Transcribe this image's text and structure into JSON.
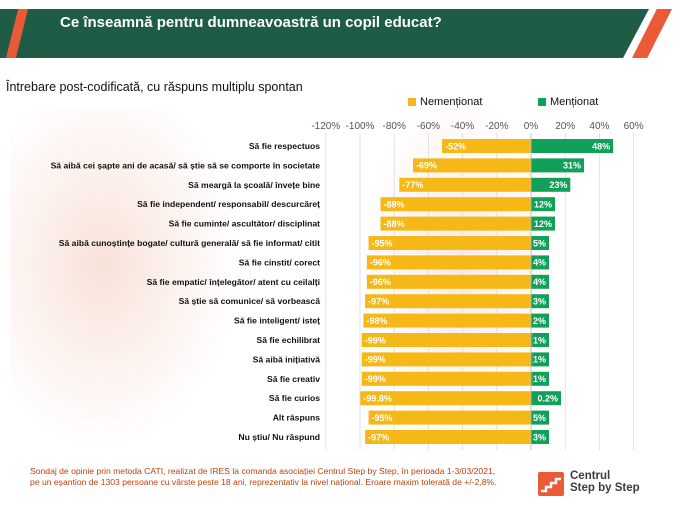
{
  "header": {
    "title": "Ce înseamnă pentru dumneavoastră un copil educat?"
  },
  "colors": {
    "header_bg": "#1e5c46",
    "accent": "#ea5a37",
    "negative": "#f6b817",
    "positive": "#11a05a"
  },
  "chart_data": {
    "type": "bar",
    "orientation": "horizontal",
    "title": "Întrebare post-codificată, cu răspuns multiplu spontan",
    "xlim": [
      -120,
      60
    ],
    "xticks": [
      "-120%",
      "-100%",
      "-80%",
      "-60%",
      "-40%",
      "-20%",
      "0%",
      "20%",
      "40%",
      "60%"
    ],
    "legend_position": "top-right",
    "grid": true,
    "categories": [
      "Să fie respectuos",
      "Să aibă cei șapte ani de acasă/ să știe să se comporte în societate",
      "Să meargă la școală/ învețe bine",
      "Să fie independent/ responsabil/ descurcăreț",
      "Să fie cuminte/ ascultător/ disciplinat",
      "Să aibă cunoștințe bogate/ cultură generală/ să fie informat/ citit",
      "Să fie cinstit/ corect",
      "Să fie empatic/ înțelegător/ atent cu ceilalți",
      "Să știe să comunice/ să vorbească",
      "Să fie inteligent/ isteț",
      "Să fie echilibrat",
      "Să aibă inițiativă",
      "Să fie creativ",
      "Să fie curios",
      "Alt răspuns",
      "Nu știu/ Nu răspund"
    ],
    "series": [
      {
        "name": "Nemenționat",
        "values": [
          -52,
          -69,
          -77,
          -88,
          -88,
          -95,
          -96,
          -96,
          -97,
          -98,
          -99,
          -99,
          -99,
          -99.8,
          -95,
          -97
        ],
        "labels": [
          "-52%",
          "-69%",
          "-77%",
          "-88%",
          "-88%",
          "-95%",
          "-96%",
          "-96%",
          "-97%",
          "-98%",
          "-99%",
          "-99%",
          "-99%",
          "-99.8%",
          "-95%",
          "-97%"
        ]
      },
      {
        "name": "Menționat",
        "values": [
          48,
          31,
          23,
          12,
          12,
          5,
          4,
          4,
          3,
          2,
          1,
          1,
          1,
          0.2,
          5,
          3
        ],
        "labels": [
          "48%",
          "31%",
          "23%",
          "12%",
          "12%",
          "5%",
          "4%",
          "4%",
          "3%",
          "2%",
          "1%",
          "1%",
          "1%",
          "0.2%",
          "5%",
          "3%"
        ]
      }
    ]
  },
  "footer": {
    "note_line1": "Sondaj de opinie prin metoda CATI, realizat de IRES la comanda asociației  Centrul Step by Step, în perioada 1-3/03/2021,",
    "note_line2": "pe un eșantion de 1303 persoane cu vârste peste 18 ani, reprezentativ la nivel național. Eroare maxim tolerată de +/-2,8%.",
    "logo_line1": "Centrul",
    "logo_line2": "Step by Step"
  }
}
